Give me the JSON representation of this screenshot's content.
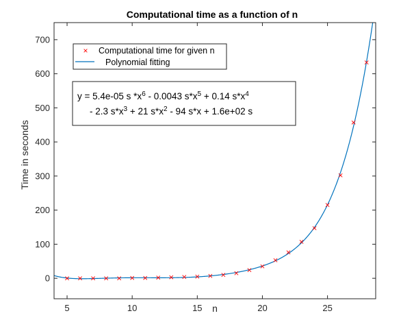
{
  "chart_data": {
    "type": "scatter",
    "title": "Computational time as a function of n",
    "xlabel": "n",
    "ylabel": "Time in seconds",
    "xlim": [
      4,
      28.7
    ],
    "ylim": [
      -60,
      750
    ],
    "xticks": [
      5,
      10,
      15,
      20,
      25
    ],
    "xtick_labels": [
      "5",
      "10",
      "15",
      "20",
      "25"
    ],
    "yticks": [
      0,
      100,
      200,
      300,
      400,
      500,
      600,
      700
    ],
    "ytick_labels": [
      "0",
      "100",
      "200",
      "300",
      "400",
      "500",
      "600",
      "700"
    ],
    "grid": false,
    "legend_position": "top-left",
    "series": [
      {
        "name": "Computational time for given n",
        "marker": "x",
        "color": "#ff0000",
        "x": [
          5,
          6,
          7,
          8,
          9,
          10,
          11,
          12,
          13,
          14,
          15,
          16,
          17,
          18,
          19,
          20,
          21,
          22,
          23,
          24,
          25,
          26,
          27,
          28
        ],
        "y": [
          0,
          0,
          0,
          0,
          0,
          1,
          1,
          2,
          3,
          4,
          5,
          7,
          10,
          15,
          24,
          35,
          53,
          76,
          107,
          147,
          215,
          302,
          457,
          633
        ]
      },
      {
        "name": "Polynomial fitting",
        "line": "solid",
        "color": "#0072bd"
      }
    ],
    "annotation": {
      "lines": [
        [
          {
            "t": "y = 5.4e-05 s *x"
          },
          {
            "t": "6",
            "sup": true
          },
          {
            "t": " - 0.0043 s*x"
          },
          {
            "t": "5",
            "sup": true
          },
          {
            "t": " + 0.14 s*x"
          },
          {
            "t": "4",
            "sup": true
          }
        ],
        [
          {
            "t": "- 2.3 s*x"
          },
          {
            "t": "3",
            "sup": true
          },
          {
            "t": " + 21 s*x"
          },
          {
            "t": "2",
            "sup": true
          },
          {
            "t": " - 94 s*x + 1.6e+02 s"
          }
        ]
      ]
    }
  }
}
